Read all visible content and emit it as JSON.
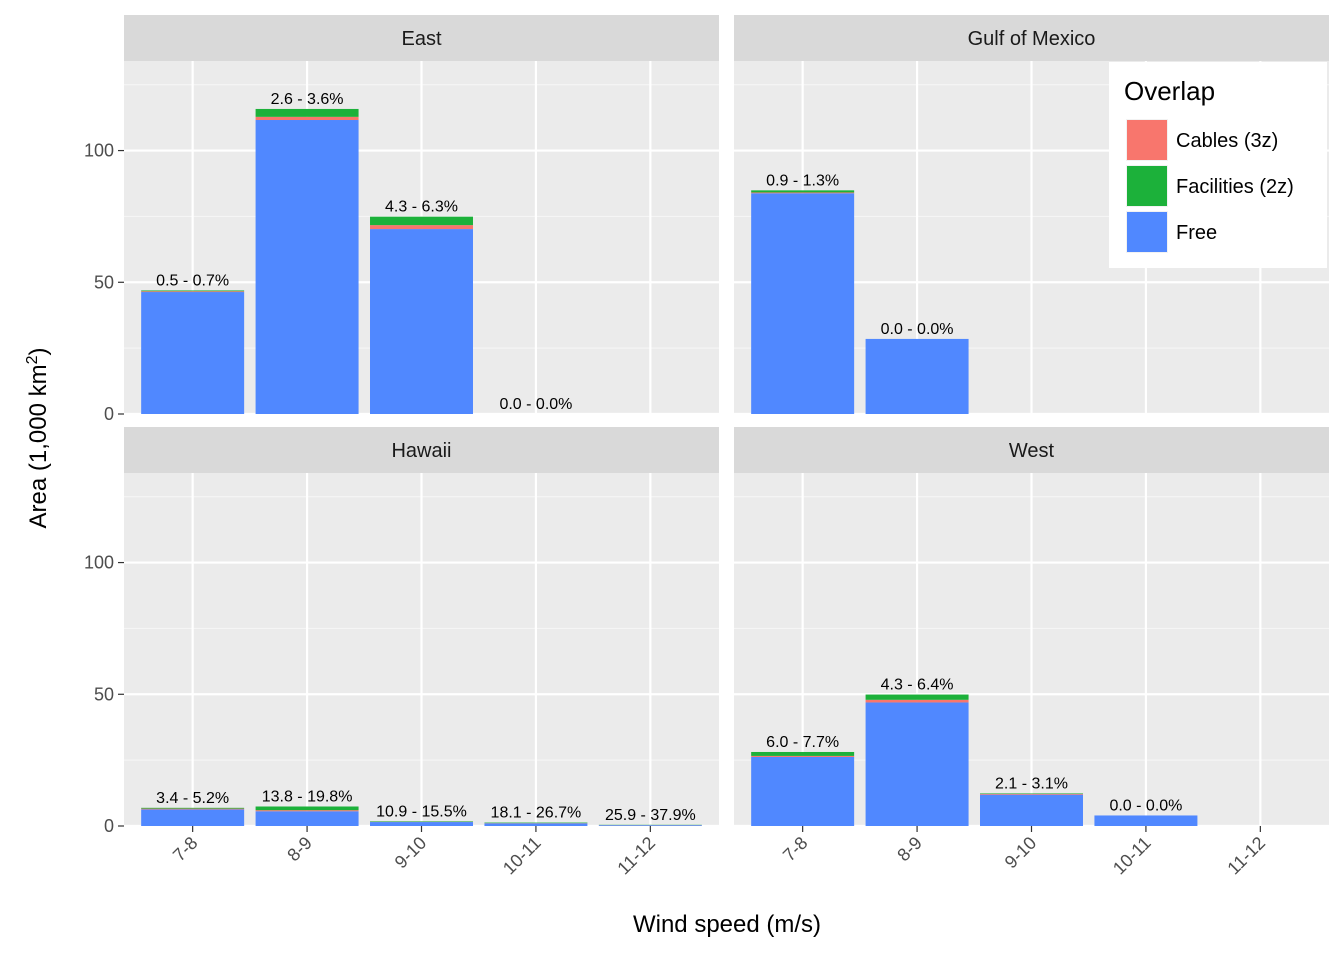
{
  "chart_data": {
    "type": "bar",
    "stacked": true,
    "faceted": true,
    "xlabel": "Wind speed (m/s)",
    "ylabel_main": "Area (1,000 km",
    "ylabel_sup": "2",
    "ylabel_close": ")",
    "ylim": [
      0,
      134
    ],
    "yticks": [
      0,
      50,
      100
    ],
    "ytick_labels": [
      "0",
      "50",
      "100"
    ],
    "categories": [
      "7-8",
      "8-9",
      "9-10",
      "10-11",
      "11-12"
    ],
    "grid": true,
    "legend": {
      "title": "Overlap",
      "position": "top-right",
      "entries": [
        {
          "key": "cables",
          "label": "Cables (3z)",
          "color": "#F8766D"
        },
        {
          "key": "facilities",
          "label": "Facilities (2z)",
          "color": "#1CB13A"
        },
        {
          "key": "free",
          "label": "Free",
          "color": "#5088FF"
        }
      ]
    },
    "panels": [
      {
        "name": "East",
        "bars": [
          {
            "category": "7-8",
            "free": 46.3,
            "cables": 0.3,
            "facilities": 0.3,
            "label": "0.5 - 0.7%"
          },
          {
            "category": "8-9",
            "free": 111.6,
            "cables": 1.2,
            "facilities": 3.0,
            "label": "2.6 - 3.6%"
          },
          {
            "category": "9-10",
            "free": 70.2,
            "cables": 1.5,
            "facilities": 3.2,
            "label": "4.3 - 6.3%"
          },
          {
            "category": "10-11",
            "free": 0,
            "cables": 0,
            "facilities": 0,
            "label": "0.0 - 0.0%"
          }
        ]
      },
      {
        "name": "Gulf of Mexico",
        "bars": [
          {
            "category": "7-8",
            "free": 83.8,
            "cables": 0.3,
            "facilities": 0.8,
            "label": "0.9 - 1.3%"
          },
          {
            "category": "8-9",
            "free": 28.5,
            "cables": 0,
            "facilities": 0,
            "label": "0.0 - 0.0%"
          }
        ]
      },
      {
        "name": "Hawaii",
        "bars": [
          {
            "category": "7-8",
            "free": 6.3,
            "cables": 0.3,
            "facilities": 0.3,
            "label": "3.4 - 5.2%"
          },
          {
            "category": "8-9",
            "free": 5.6,
            "cables": 0.4,
            "facilities": 1.4,
            "label": "13.8 - 19.8%"
          },
          {
            "category": "9-10",
            "free": 1.5,
            "cables": 0.1,
            "facilities": 0.2,
            "label": "10.9 - 15.5%"
          },
          {
            "category": "10-11",
            "free": 1.0,
            "cables": 0.1,
            "facilities": 0.2,
            "label": "18.1 - 26.7%"
          },
          {
            "category": "11-12",
            "free": 0.3,
            "cables": 0.05,
            "facilities": 0.1,
            "label": "25.9 - 37.9%"
          }
        ]
      },
      {
        "name": "West",
        "bars": [
          {
            "category": "7-8",
            "free": 26.2,
            "cables": 0.4,
            "facilities": 1.5,
            "label": "6.0 - 7.7%"
          },
          {
            "category": "8-9",
            "free": 46.9,
            "cables": 1.0,
            "facilities": 2.0,
            "label": "4.3 - 6.4%"
          },
          {
            "category": "9-10",
            "free": 11.9,
            "cables": 0.3,
            "facilities": 0.2,
            "label": "2.1 - 3.1%"
          },
          {
            "category": "10-11",
            "free": 4.0,
            "cables": 0,
            "facilities": 0,
            "label": "0.0 - 0.0%"
          }
        ]
      }
    ]
  }
}
